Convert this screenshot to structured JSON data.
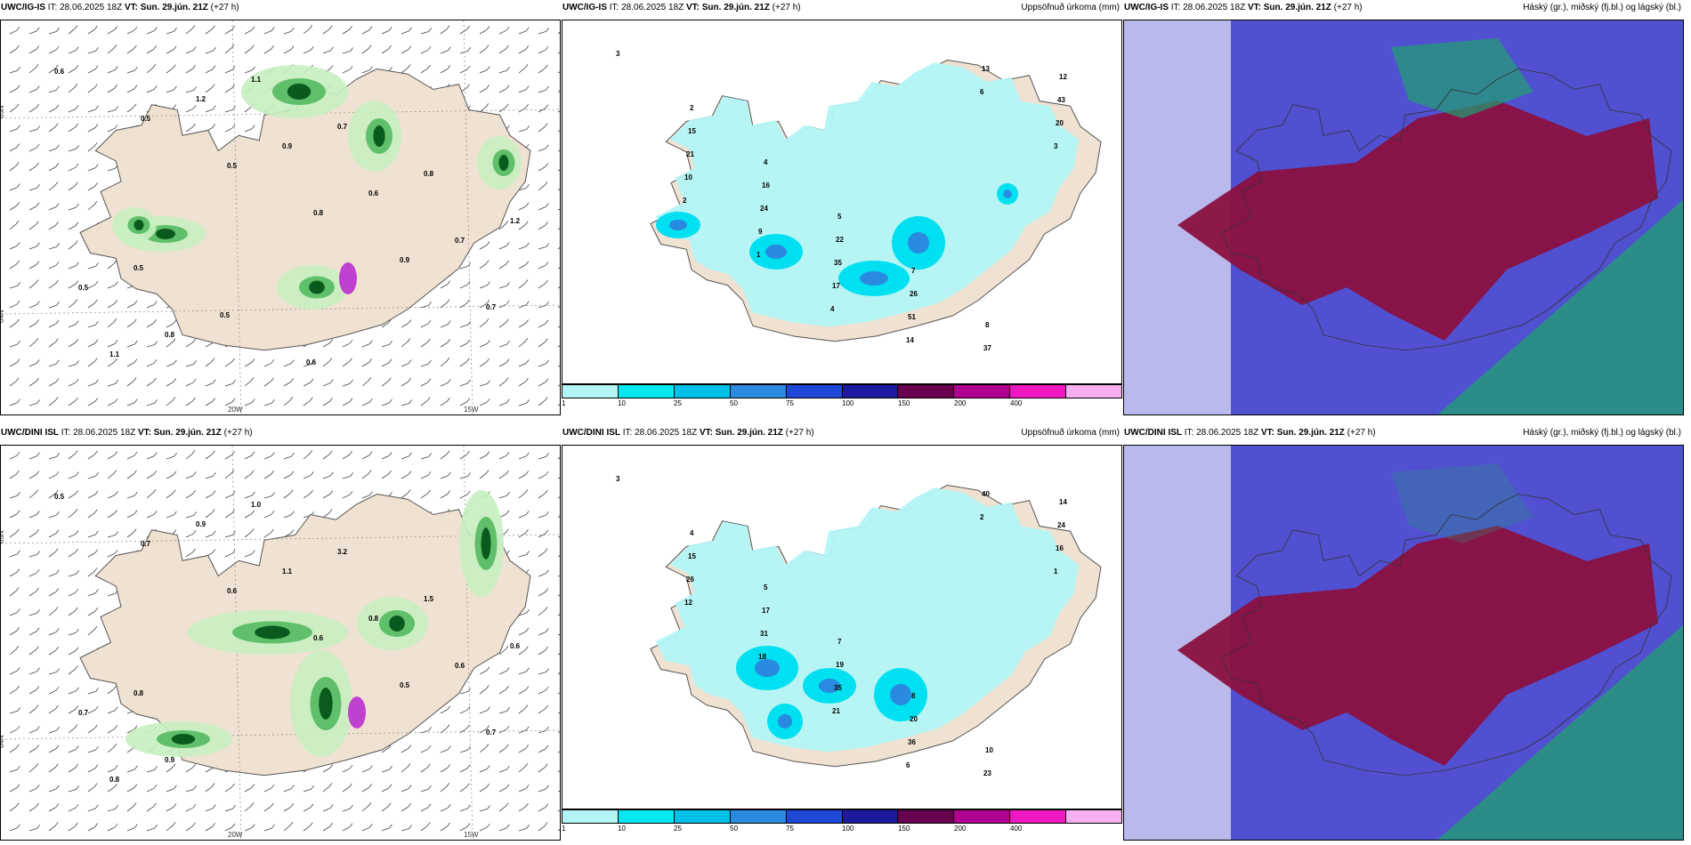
{
  "panels": [
    {
      "id": "uwc-igis-wind",
      "model": "UWC/IG-IS",
      "it_label": "IT:",
      "it_value": "28.06.2025 18Z",
      "vt_label": "VT:",
      "vt_value": "Sun. 29.jún. 21Z",
      "lead": "(+27 h)",
      "right_title": "",
      "axis_labels": {
        "lat_top": "65N",
        "lat_bottom": "64N",
        "lon_left": "20W",
        "lon_right": "15W"
      },
      "values": [
        "0.6",
        "0.5",
        "0.5",
        "0.8",
        "0.9",
        "0.7",
        "1.1",
        "1.2",
        "0.9",
        "0.6",
        "0.7",
        "0.5",
        "0.8",
        "1.1",
        "0.7",
        "0.8",
        "1.2",
        "0.5",
        "0.5",
        "0.6"
      ]
    },
    {
      "id": "uwc-igis-precip",
      "model": "UWC/IG-IS",
      "it_label": "IT:",
      "it_value": "28.06.2025 18Z",
      "vt_label": "VT:",
      "vt_value": "Sun. 29.jún. 21Z",
      "lead": "(+27 h)",
      "right_title": "Uppsöfnuð úrkoma (mm)",
      "values": [
        "3",
        "2",
        "4",
        "5",
        "7",
        "8",
        "12",
        "15",
        "16",
        "22",
        "26",
        "37",
        "43",
        "21",
        "24",
        "35",
        "51",
        "13",
        "20",
        "10",
        "9",
        "17",
        "14",
        "6",
        "3",
        "2",
        "1",
        "4"
      ]
    },
    {
      "id": "uwc-igis-cloud",
      "model": "UWC/IG-IS",
      "it_label": "IT:",
      "it_value": "28.06.2025 18Z",
      "vt_label": "VT:",
      "vt_value": "Sun. 29.jún. 21Z",
      "lead": "(+27 h)",
      "right_title": "Háský (gr.), miðský (fj.bl.) og lágský (bl.)"
    },
    {
      "id": "uwc-dini-wind",
      "model": "UWC/DINI ISL",
      "it_label": "IT:",
      "it_value": "28.06.2025 18Z",
      "vt_label": "VT:",
      "vt_value": "Sun. 29.jún. 21Z",
      "lead": "(+27 h)",
      "right_title": "",
      "axis_labels": {
        "lat_top": "65N",
        "lat_bottom": "64N",
        "lon_left": "20W",
        "lon_right": "15W"
      },
      "values": [
        "0.5",
        "0.7",
        "0.6",
        "0.6",
        "0.5",
        "0.7",
        "0.8",
        "0.9",
        "1.1",
        "0.8",
        "0.6",
        "0.7",
        "0.9",
        "1.0",
        "3.2",
        "1.5",
        "0.6",
        "0.8"
      ]
    },
    {
      "id": "uwc-dini-precip",
      "model": "UWC/DINI ISL",
      "it_label": "IT:",
      "it_value": "28.06.2025 18Z",
      "vt_label": "VT:",
      "vt_value": "Sun. 29.jún. 21Z",
      "lead": "(+27 h)",
      "right_title": "Uppsöfnuð úrkoma (mm)",
      "values": [
        "3",
        "4",
        "5",
        "7",
        "8",
        "10",
        "14",
        "15",
        "17",
        "19",
        "20",
        "23",
        "24",
        "26",
        "31",
        "35",
        "36",
        "40",
        "16",
        "12",
        "18",
        "21",
        "6",
        "2",
        "1"
      ]
    },
    {
      "id": "uwc-dini-cloud",
      "model": "UWC/DINI ISL",
      "it_label": "IT:",
      "it_value": "28.06.2025 18Z",
      "vt_label": "VT:",
      "vt_value": "Sun. 29.jún. 21Z",
      "lead": "(+27 h)",
      "right_title": "Háský (gr.), miðský (fj.bl.) og lágský (bl.)"
    }
  ],
  "colorbar": {
    "labels": [
      "1",
      "10",
      "25",
      "50",
      "75",
      "100",
      "150",
      "200",
      "400"
    ],
    "colors": [
      "#b3f5f5",
      "#00e8f0",
      "#00c0e8",
      "#2a8ae0",
      "#2048d8",
      "#1e1aa0",
      "#6a0050",
      "#b00090",
      "#f018c0",
      "#f5b0f0"
    ]
  },
  "colors": {
    "land": "#f0e2d2",
    "green_light": "#c8efc0",
    "green_mid": "#5fbf6a",
    "green_dark": "#0a5a1e",
    "purple": "#c040d0",
    "precip_light": "#b3f5f5",
    "precip_mid": "#00e0f0",
    "cloud_low": "#5050d0",
    "cloud_mid": "#8a1040",
    "cloud_high": "#20a070"
  }
}
